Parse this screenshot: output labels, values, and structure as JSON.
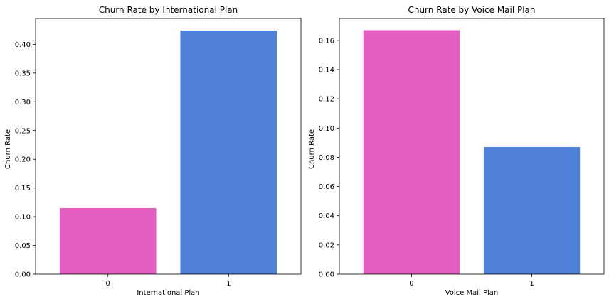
{
  "chart_data": [
    {
      "type": "bar",
      "title": "Churn Rate by International Plan",
      "xlabel": "International Plan",
      "ylabel": "Churn Rate",
      "categories": [
        "0",
        "1"
      ],
      "values": [
        0.115,
        0.424
      ],
      "colors": [
        "#e45fc2",
        "#5081d8"
      ],
      "ylim": [
        0,
        0.445
      ],
      "yticks": [
        0.0,
        0.05,
        0.1,
        0.15,
        0.2,
        0.25,
        0.3,
        0.35,
        0.4
      ],
      "ytick_labels": [
        "0.00",
        "0.05",
        "0.10",
        "0.15",
        "0.20",
        "0.25",
        "0.30",
        "0.35",
        "0.40"
      ],
      "grid": false,
      "legend": "none"
    },
    {
      "type": "bar",
      "title": "Churn Rate by Voice Mail Plan",
      "xlabel": "Voice Mail Plan",
      "ylabel": "Churn Rate",
      "categories": [
        "0",
        "1"
      ],
      "values": [
        0.167,
        0.087
      ],
      "colors": [
        "#e45fc2",
        "#5081d8"
      ],
      "ylim": [
        0,
        0.175
      ],
      "yticks": [
        0.0,
        0.02,
        0.04,
        0.06,
        0.08,
        0.1,
        0.12,
        0.14,
        0.16
      ],
      "ytick_labels": [
        "0.00",
        "0.02",
        "0.04",
        "0.06",
        "0.08",
        "0.10",
        "0.12",
        "0.14",
        "0.16"
      ],
      "grid": false,
      "legend": "none"
    }
  ]
}
